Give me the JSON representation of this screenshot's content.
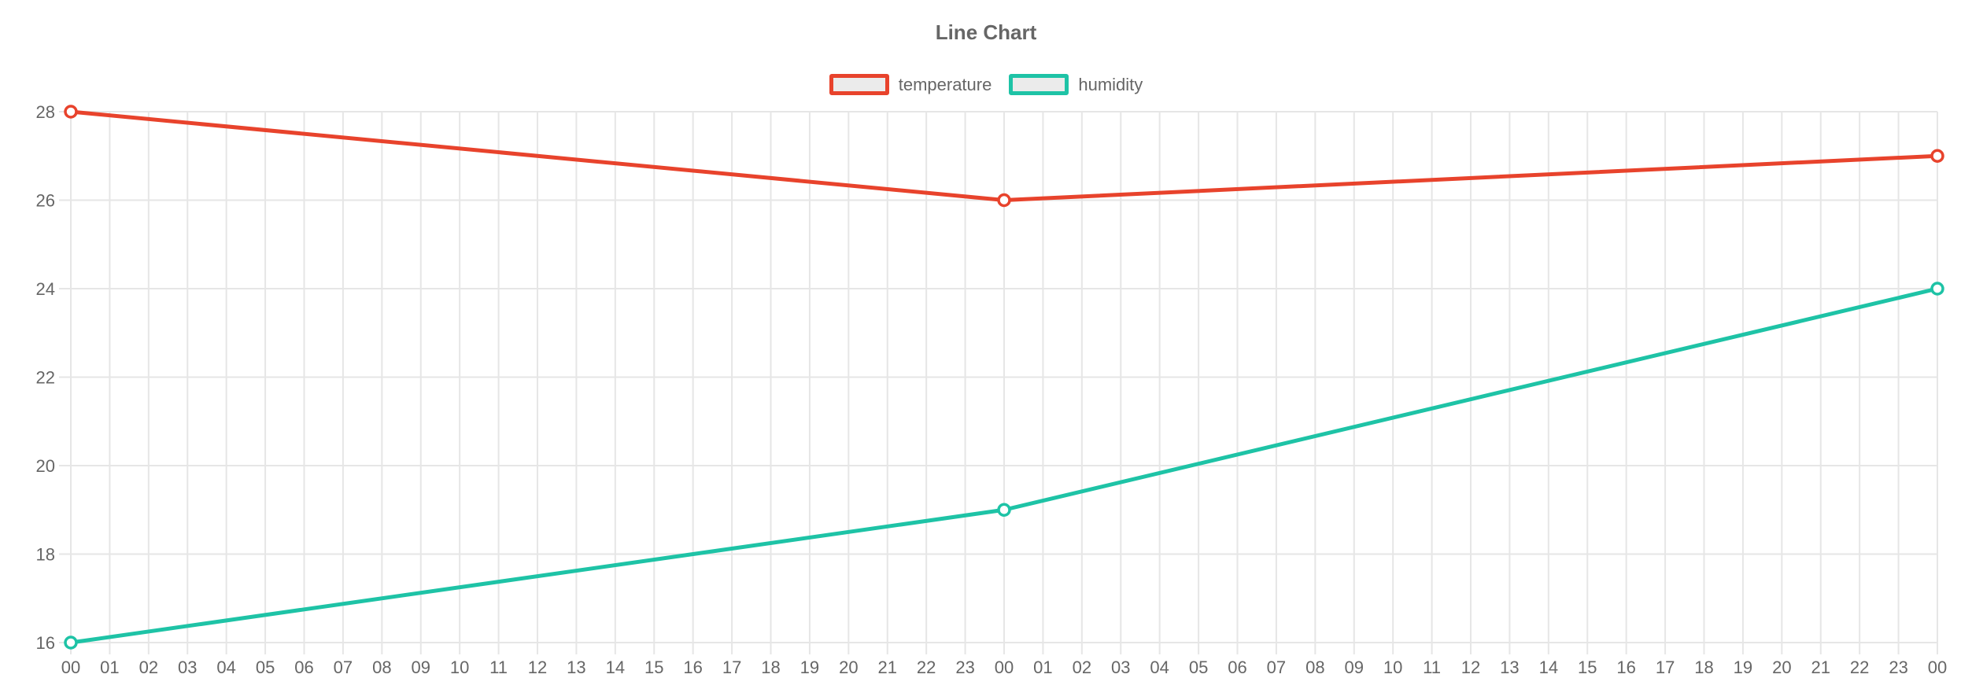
{
  "chart_data": {
    "type": "line",
    "title": "Line Chart",
    "legend_position": "top",
    "grid": true,
    "background_color": "#ffffff",
    "grid_color": "#e6e6e6",
    "axis_text_color": "#666666",
    "x_labels": [
      "00",
      "01",
      "02",
      "03",
      "04",
      "05",
      "06",
      "07",
      "08",
      "09",
      "10",
      "11",
      "12",
      "13",
      "14",
      "15",
      "16",
      "17",
      "18",
      "19",
      "20",
      "21",
      "22",
      "23",
      "00",
      "01",
      "02",
      "03",
      "04",
      "05",
      "06",
      "07",
      "08",
      "09",
      "10",
      "11",
      "12",
      "13",
      "14",
      "15",
      "16",
      "17",
      "18",
      "19",
      "20",
      "21",
      "22",
      "23",
      "00"
    ],
    "y_ticks": [
      16,
      18,
      20,
      22,
      24,
      26,
      28
    ],
    "ylim": [
      16,
      28
    ],
    "xlabel": "",
    "ylabel": "",
    "series": [
      {
        "name": "temperature",
        "color": "#e8432c",
        "swatch_fill": "#ebebeb",
        "marker": "hollow-circle",
        "points": [
          {
            "xi": 0,
            "y": 28
          },
          {
            "xi": 24,
            "y": 26
          },
          {
            "xi": 48,
            "y": 27
          }
        ]
      },
      {
        "name": "humidity",
        "color": "#1ec3a6",
        "swatch_fill": "#ebebeb",
        "marker": "hollow-circle",
        "points": [
          {
            "xi": 0,
            "y": 16
          },
          {
            "xi": 24,
            "y": 19
          },
          {
            "xi": 48,
            "y": 24
          }
        ]
      }
    ]
  }
}
